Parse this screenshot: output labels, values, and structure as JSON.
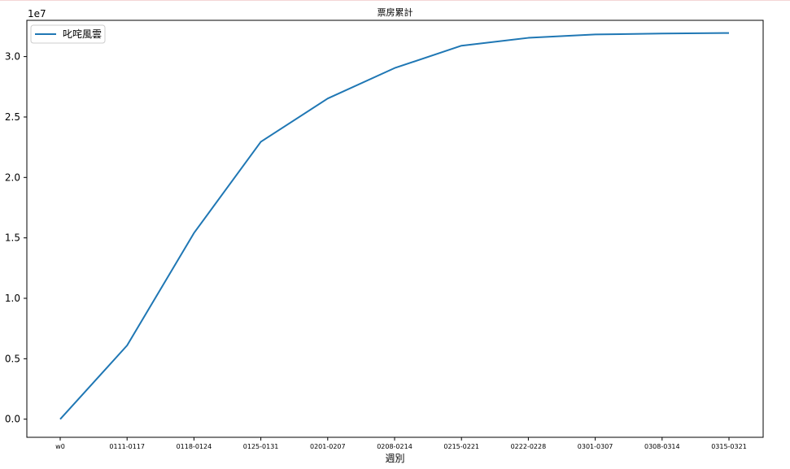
{
  "chart_data": {
    "type": "line",
    "title": "票房累計",
    "xlabel": "週別",
    "ylabel": "",
    "y_offset_label": "1e7",
    "categories": [
      "w0",
      "0111-0117",
      "0118-0124",
      "0125-0131",
      "0201-0207",
      "0208-0214",
      "0215-0221",
      "0222-0228",
      "0301-0307",
      "0308-0314",
      "0315-0321"
    ],
    "y_ticks": [
      "0.0",
      "0.5",
      "1.0",
      "1.5",
      "2.0",
      "2.5",
      "3.0"
    ],
    "ylim": [
      -1500000,
      33000000
    ],
    "series": [
      {
        "name": "叱咤風雲",
        "color": "#1f77b4",
        "values": [
          0,
          6100000,
          15400000,
          22950000,
          26530000,
          29050000,
          30900000,
          31550000,
          31830000,
          31910000,
          31950000
        ]
      }
    ],
    "legend": "top-left",
    "grid": false
  }
}
